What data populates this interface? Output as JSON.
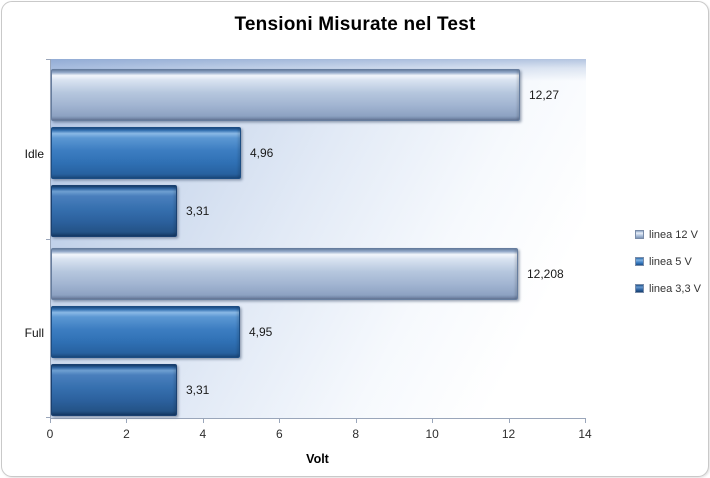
{
  "chart_data": {
    "type": "bar",
    "orientation": "horizontal",
    "title": "Tensioni Misurate nel Test",
    "xlabel": "Volt",
    "categories": [
      "Idle",
      "Full"
    ],
    "series": [
      {
        "name": "linea 12 V",
        "color": "#aabfdc",
        "values": [
          12.27,
          12.208
        ],
        "value_labels": [
          "12,27",
          "12,208"
        ]
      },
      {
        "name": "linea 5 V",
        "color": "#3478bf",
        "values": [
          4.96,
          4.95
        ],
        "value_labels": [
          "4,96",
          "4,95"
        ]
      },
      {
        "name": "linea 3,3 V",
        "color": "#2b5f9e",
        "values": [
          3.31,
          3.31
        ],
        "value_labels": [
          "3,31",
          "3,31"
        ]
      }
    ],
    "xlim": [
      0,
      14
    ],
    "xticks": [
      "0",
      "2",
      "4",
      "6",
      "8",
      "10",
      "12",
      "14"
    ],
    "grid": false,
    "legend_position": "right",
    "accent_colors": {
      "axis": "#9aa6ba",
      "frame_border": "#c9c9c9",
      "plot_gradient_start": "#b0c4e4",
      "plot_gradient_end": "#ffffff"
    }
  }
}
